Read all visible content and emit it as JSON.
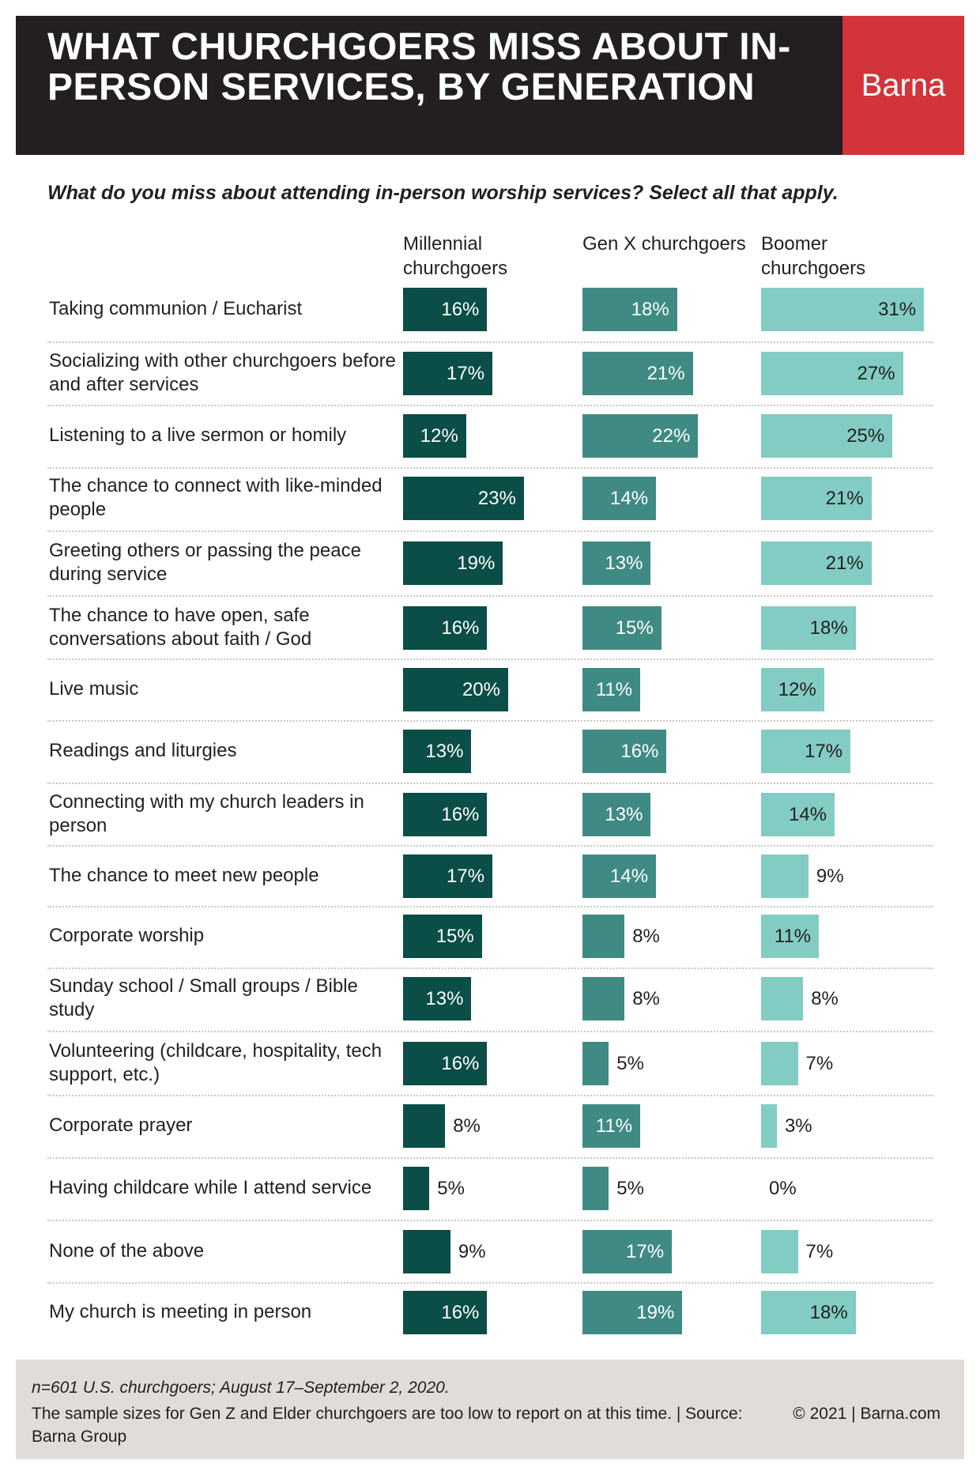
{
  "header": {
    "title": "WHAT CHURCHGOERS MISS ABOUT IN-PERSON SERVICES, BY GENERATION",
    "brand": "Barna"
  },
  "colors": {
    "header_bg": "#231f20",
    "brand_bg": "#d2343a",
    "millennial": "#0b4d47",
    "genx": "#3f8b84",
    "boomer": "#82ccc3",
    "footer_bg": "#e2dcd8"
  },
  "chart_data": {
    "type": "bar",
    "title": "What do you miss about attending in-person worship services? Select all that apply.",
    "categories": [
      "Taking communion / Eucharist",
      "Socializing with other churchgoers before and after services",
      "Listening to a live sermon or homily",
      "The chance to connect with like-minded people",
      "Greeting others or passing the peace during service",
      "The chance to have open, safe conversations about faith / God",
      "Live music",
      "Readings and liturgies",
      "Connecting with my church leaders in person",
      "The chance to meet new people",
      "Corporate worship",
      "Sunday school / Small groups / Bible study",
      "Volunteering (childcare, hospitality, tech support, etc.)",
      "Corporate prayer",
      "Having childcare while I attend service",
      "None of the above",
      "My church is meeting in person"
    ],
    "series": [
      {
        "name": "Millennial churchgoers",
        "values": [
          16,
          17,
          12,
          23,
          19,
          16,
          20,
          13,
          16,
          17,
          15,
          13,
          16,
          8,
          5,
          9,
          16
        ]
      },
      {
        "name": "Gen X churchgoers",
        "values": [
          18,
          21,
          22,
          14,
          13,
          15,
          11,
          16,
          13,
          14,
          8,
          8,
          5,
          11,
          5,
          17,
          19
        ]
      },
      {
        "name": "Boomer churchgoers",
        "values": [
          31,
          27,
          25,
          21,
          21,
          18,
          12,
          17,
          14,
          9,
          11,
          8,
          7,
          3,
          0,
          7,
          18
        ]
      }
    ],
    "value_suffix": "%"
  },
  "footer": {
    "sample": "n=601 U.S. churchgoers; August 17–September 2, 2020.",
    "note": "The sample sizes for Gen Z and Elder churchgoers are too low to report on at this time. | Source: Barna Group",
    "copyright": "© 2021 |   Barna.com"
  }
}
